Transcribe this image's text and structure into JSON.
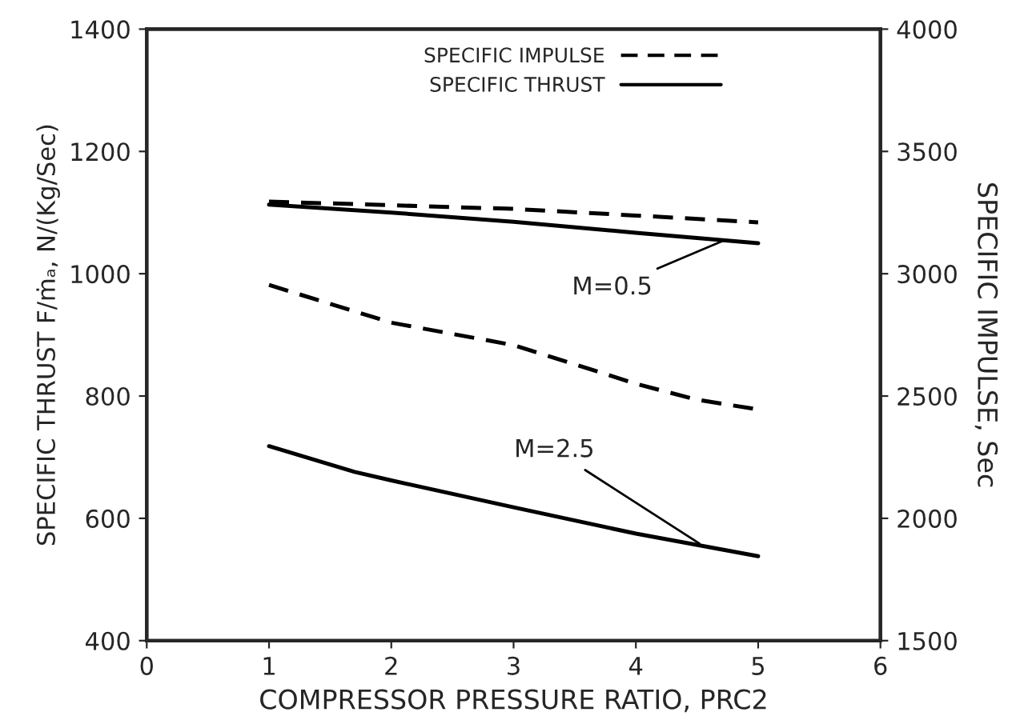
{
  "chart_data": {
    "type": "line",
    "xlabel": "COMPRESSOR PRESSURE RATIO, PRC2",
    "ylabel": "SPECIFIC THRUST F/ṁₐ, N/(Kg/Sec)",
    "y2label": "SPECIFIC IMPULSE, Sec",
    "xlim": [
      0,
      6
    ],
    "xticks": [
      0,
      1,
      2,
      3,
      4,
      5,
      6
    ],
    "ylim": [
      400,
      1400
    ],
    "yticks": [
      400,
      600,
      800,
      1000,
      1200,
      1400
    ],
    "y2lim": [
      1500,
      4000
    ],
    "y2ticks": [
      1500,
      2000,
      2500,
      3000,
      3500,
      4000
    ],
    "grid": false,
    "legend": "top",
    "marker": "none",
    "series": [
      {
        "name": "SPECIFIC IMPULSE",
        "color": "#000000",
        "axis": "y2",
        "line_style": "dashed",
        "x": [
          1,
          2,
          3,
          4,
          5
        ],
        "values": [
          3295,
          3280,
          3265,
          3238,
          3210
        ]
      },
      {
        "name": "SPECIFIC THRUST",
        "color": "#000000",
        "line_style": "solid",
        "x": [
          1,
          2,
          3,
          4,
          5
        ],
        "values": [
          1113,
          1100,
          1085,
          1067,
          1050
        ]
      },
      {
        "color": "#000000",
        "axis": "y2",
        "line_style": "dashed",
        "x": [
          1,
          2,
          3,
          3.5,
          4,
          4.5,
          5
        ],
        "values": [
          2954,
          2800,
          2708,
          2630,
          2550,
          2485,
          2445
        ]
      },
      {
        "color": "#000000",
        "line_style": "solid",
        "x": [
          1,
          1.7,
          2,
          3,
          4,
          5
        ],
        "values": [
          718,
          676,
          662,
          618,
          575,
          538
        ]
      }
    ],
    "annotations": [
      {
        "text": "M=0.5",
        "x": 4.75,
        "y": 1057
      },
      {
        "text": "M=2.5",
        "x": 4.55,
        "y": 555
      }
    ]
  }
}
